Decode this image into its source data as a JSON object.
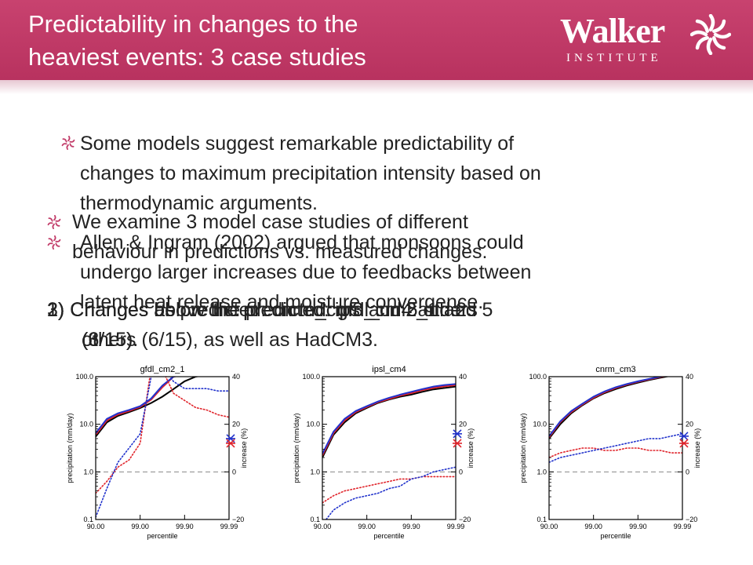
{
  "slide": {
    "title_line1": "Predictability in changes to the",
    "title_line2": "heaviest events: 3 case studies",
    "logo": {
      "name": "Walker",
      "subtitle": "INSTITUTE"
    },
    "bullets": [
      {
        "lines": [
          "Some models  suggest remarkable predictability of",
          "changes to maximum precipitation intensity based on",
          "thermodynamic  arguments."
        ]
      },
      {
        "lines": [
          "We examine  3 model  case studies of different",
          "behaviour in predictions  vs. measured changes."
        ]
      },
      {
        "lines": [
          "Allen & Ingram (2002) argued that monsoons could",
          "undergo larger increases due to feedbacks between",
          "latent heat release and moisture convergence."
        ]
      }
    ],
    "numbered": [
      {
        "lines": [
          "1) Changes above the predicted: gfdl_cm2_1 and 5",
          "(3/15)."
        ]
      },
      {
        "lines": [
          "2) Changes below the predicted: ipsl_cm4 and 2",
          "others (6/15), as well as HadCM3."
        ]
      },
      {
        "lines": [
          "3) Changes as predicted: cnrm_cm3 and 5 others",
          "(6/15)."
        ]
      }
    ],
    "colors": {
      "header": "#c23c69",
      "red": "#e0232a",
      "blue": "#2233cc",
      "black": "#000000"
    }
  },
  "chart_data": [
    {
      "type": "line",
      "title": "gfdl_cm2_1",
      "xlabel": "percentile",
      "ylabel": "precipitation (mm/day)",
      "y2label": "increase (%)",
      "xticks": [
        "90.00",
        "99.00",
        "99.90",
        "99.99"
      ],
      "yticks": [
        "0.1",
        "1.0",
        "10.0",
        "100.0"
      ],
      "y2ticks": [
        "−20",
        "0",
        "20",
        "40"
      ],
      "x": [
        0,
        0.25,
        0.5,
        0.75,
        1,
        1.25,
        1.5,
        1.75,
        2,
        2.25,
        2.5,
        2.75,
        3
      ],
      "series": [
        {
          "color": "black",
          "style": "solid",
          "axis": "left",
          "values": [
            5.5,
            11,
            15,
            18,
            22,
            28,
            38,
            55,
            80,
            100,
            110,
            115,
            115
          ]
        },
        {
          "color": "red",
          "style": "solid",
          "axis": "left",
          "values": [
            6,
            12,
            16,
            19,
            23,
            33,
            60,
            100,
            110,
            115,
            115,
            115,
            115
          ]
        },
        {
          "color": "blue",
          "style": "solid",
          "axis": "left",
          "values": [
            6.5,
            13,
            17,
            20,
            24,
            35,
            65,
            100,
            110,
            115,
            115,
            115,
            115
          ]
        },
        {
          "color": "red",
          "style": "dotted",
          "axis": "right",
          "values": [
            -9,
            -4,
            2,
            5,
            12,
            44,
            43,
            33,
            30,
            27,
            26,
            24,
            23
          ]
        },
        {
          "color": "blue",
          "style": "dotted",
          "axis": "right",
          "values": [
            -19,
            -7,
            4,
            10,
            16,
            40,
            44,
            38,
            35,
            35,
            35,
            34,
            34
          ]
        }
      ],
      "markers": [
        {
          "color": "blue",
          "value": 14
        },
        {
          "color": "red",
          "value": 12
        }
      ],
      "y2_zero_dashed": true
    },
    {
      "type": "line",
      "title": "ipsl_cm4",
      "xlabel": "percentile",
      "ylabel": "precipitation (mm/day)",
      "y2label": "increase (%)",
      "xticks": [
        "90.00",
        "99.00",
        "99.90",
        "99.99"
      ],
      "yticks": [
        "0.1",
        "1.0",
        "10.0",
        "100.0"
      ],
      "y2ticks": [
        "−20",
        "0",
        "20",
        "40"
      ],
      "x": [
        0,
        0.25,
        0.5,
        0.75,
        1,
        1.25,
        1.5,
        1.75,
        2,
        2.25,
        2.5,
        2.75,
        3
      ],
      "series": [
        {
          "color": "black",
          "style": "solid",
          "axis": "left",
          "values": [
            2,
            6,
            11,
            17,
            22,
            28,
            33,
            38,
            42,
            48,
            54,
            58,
            62
          ]
        },
        {
          "color": "red",
          "style": "solid",
          "axis": "left",
          "values": [
            2.2,
            6.5,
            12,
            18,
            23,
            29,
            34,
            40,
            45,
            52,
            58,
            63,
            66
          ]
        },
        {
          "color": "blue",
          "style": "solid",
          "axis": "left",
          "values": [
            2.4,
            7,
            13,
            19,
            24,
            30,
            36,
            42,
            48,
            55,
            62,
            67,
            70
          ]
        },
        {
          "color": "red",
          "style": "dotted",
          "axis": "right",
          "values": [
            -13,
            -10,
            -8,
            -7,
            -6,
            -5,
            -4,
            -3,
            -3,
            -2,
            -2,
            -2,
            -2
          ]
        },
        {
          "color": "blue",
          "style": "dotted",
          "axis": "right",
          "values": [
            -22,
            -16,
            -13,
            -11,
            -10,
            -9,
            -7,
            -6,
            -3,
            -2,
            0,
            1,
            2
          ]
        }
      ],
      "markers": [
        {
          "color": "blue",
          "value": 16
        },
        {
          "color": "red",
          "value": 12
        }
      ],
      "y2_zero_dashed": true
    },
    {
      "type": "line",
      "title": "cnrm_cm3",
      "xlabel": "percentile",
      "ylabel": "precipitation (mm/day)",
      "y2label": "increase (%)",
      "xticks": [
        "90.00",
        "99.00",
        "99.90",
        "99.99"
      ],
      "yticks": [
        "0.1",
        "1.0",
        "10.0",
        "100.0"
      ],
      "y2ticks": [
        "−20",
        "0",
        "20",
        "40"
      ],
      "x": [
        0,
        0.25,
        0.5,
        0.75,
        1,
        1.25,
        1.5,
        1.75,
        2,
        2.25,
        2.5,
        2.75,
        3
      ],
      "series": [
        {
          "color": "black",
          "style": "solid",
          "axis": "left",
          "values": [
            5,
            10,
            17,
            25,
            35,
            45,
            55,
            65,
            75,
            85,
            95,
            105,
            110
          ]
        },
        {
          "color": "red",
          "style": "solid",
          "axis": "left",
          "values": [
            5.3,
            11,
            18,
            26,
            36,
            47,
            58,
            68,
            78,
            88,
            98,
            108,
            113
          ]
        },
        {
          "color": "blue",
          "style": "solid",
          "axis": "left",
          "values": [
            5.6,
            11.5,
            19,
            27,
            38,
            49,
            60,
            70,
            80,
            90,
            100,
            110,
            115
          ]
        },
        {
          "color": "red",
          "style": "dotted",
          "axis": "right",
          "values": [
            6,
            8,
            9,
            10,
            10,
            9,
            9,
            10,
            10,
            9,
            9,
            8,
            8
          ]
        },
        {
          "color": "blue",
          "style": "dotted",
          "axis": "right",
          "values": [
            4,
            6,
            7,
            8,
            9,
            10,
            11,
            12,
            13,
            14,
            14,
            15,
            16
          ]
        }
      ],
      "markers": [
        {
          "color": "blue",
          "value": 15
        },
        {
          "color": "red",
          "value": 12
        }
      ],
      "y2_zero_dashed": true
    }
  ]
}
